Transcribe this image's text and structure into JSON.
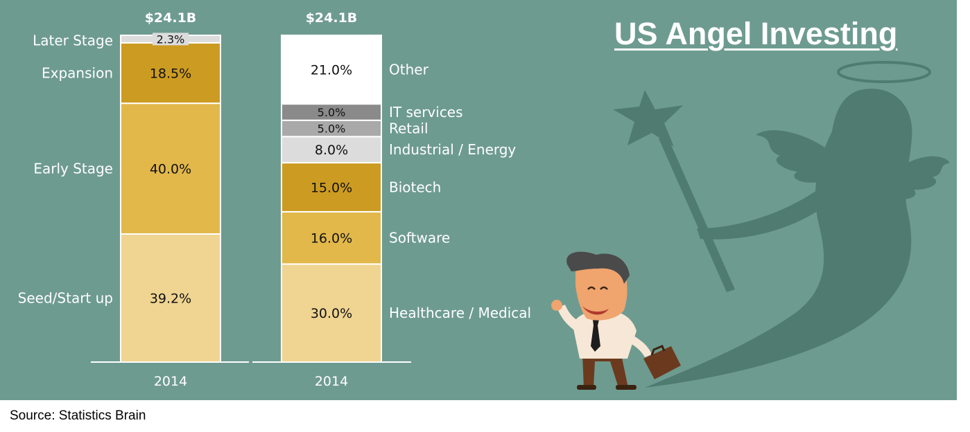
{
  "title": "US Angel Investing",
  "source": "Source: Statistics Brain",
  "colors": {
    "background": "#6e9b90",
    "shadow": "#4f7b70"
  },
  "chart_data": [
    {
      "type": "stacked-bar",
      "categories": [
        "2014"
      ],
      "total_label": "$24.1B",
      "series": [
        {
          "name": "Seed/Start up",
          "value": 39.2,
          "label": "39.2%",
          "color": "#efd492"
        },
        {
          "name": "Early Stage",
          "value": 40.0,
          "label": "40.0%",
          "color": "#e2b84b"
        },
        {
          "name": "Expansion",
          "value": 18.5,
          "label": "18.5%",
          "color": "#cc9b21"
        },
        {
          "name": "Later Stage",
          "value": 2.3,
          "label": "2.3%",
          "color": "#dcdcdc"
        }
      ]
    },
    {
      "type": "stacked-bar",
      "categories": [
        "2014"
      ],
      "total_label": "$24.1B",
      "series": [
        {
          "name": "Healthcare / Medical",
          "value": 30.0,
          "label": "30.0%",
          "color": "#efd492"
        },
        {
          "name": "Software",
          "value": 16.0,
          "label": "16.0%",
          "color": "#e2b84b"
        },
        {
          "name": "Biotech",
          "value": 15.0,
          "label": "15.0%",
          "color": "#cc9b21"
        },
        {
          "name": "Industrial / Energy",
          "value": 8.0,
          "label": "8.0%",
          "color": "#dcdcdc"
        },
        {
          "name": "Retail",
          "value": 5.0,
          "label": "5.0%",
          "color": "#a9a9a9"
        },
        {
          "name": "IT services",
          "value": 5.0,
          "label": "5.0%",
          "color": "#8a8a8a"
        },
        {
          "name": "Other",
          "value": 21.0,
          "label": "21.0%",
          "color": "#ffffff"
        }
      ]
    }
  ]
}
